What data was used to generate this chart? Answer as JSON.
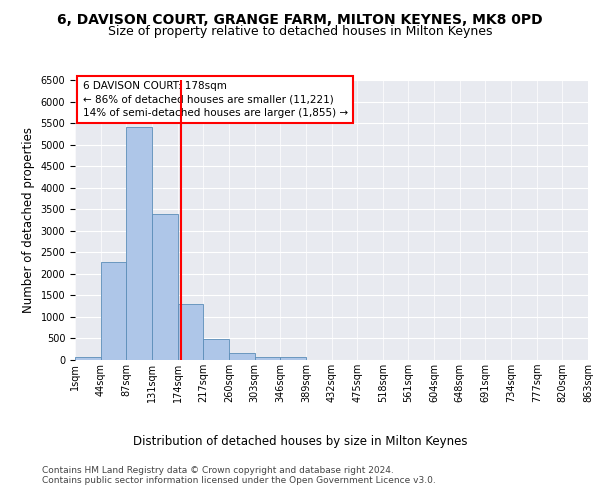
{
  "title_line1": "6, DAVISON COURT, GRANGE FARM, MILTON KEYNES, MK8 0PD",
  "title_line2": "Size of property relative to detached houses in Milton Keynes",
  "xlabel": "Distribution of detached houses by size in Milton Keynes",
  "ylabel": "Number of detached properties",
  "footer_line1": "Contains HM Land Registry data © Crown copyright and database right 2024.",
  "footer_line2": "Contains public sector information licensed under the Open Government Licence v3.0.",
  "annotation_line1": "6 DAVISON COURT: 178sqm",
  "annotation_line2": "← 86% of detached houses are smaller (11,221)",
  "annotation_line3": "14% of semi-detached houses are larger (1,855) →",
  "bar_values": [
    70,
    2270,
    5420,
    3380,
    1310,
    480,
    160,
    80,
    60,
    0,
    0,
    0,
    0,
    0,
    0,
    0,
    0,
    0,
    0,
    0
  ],
  "categories": [
    "1sqm",
    "44sqm",
    "87sqm",
    "131sqm",
    "174sqm",
    "217sqm",
    "260sqm",
    "303sqm",
    "346sqm",
    "389sqm",
    "432sqm",
    "475sqm",
    "518sqm",
    "561sqm",
    "604sqm",
    "648sqm",
    "691sqm",
    "734sqm",
    "777sqm",
    "820sqm",
    "863sqm"
  ],
  "bar_color": "#aec6e8",
  "bar_edge_color": "#5b8db8",
  "vline_x": 4.15,
  "vline_color": "red",
  "ylim_max": 6500,
  "yticks": [
    0,
    500,
    1000,
    1500,
    2000,
    2500,
    3000,
    3500,
    4000,
    4500,
    5000,
    5500,
    6000,
    6500
  ],
  "plot_bg_color": "#e8eaf0",
  "title_fontsize": 10,
  "subtitle_fontsize": 9,
  "axis_label_fontsize": 8.5,
  "tick_fontsize": 7,
  "footer_fontsize": 6.5,
  "annotation_fontsize": 7.5
}
